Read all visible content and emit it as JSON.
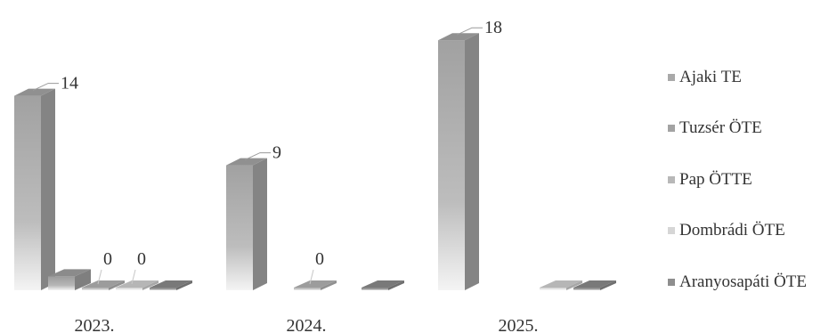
{
  "chart_data": {
    "type": "bar",
    "categories": [
      "2023.",
      "2024.",
      "2025."
    ],
    "series": [
      {
        "name": "Ajaki TE",
        "values": [
          14,
          9,
          18
        ],
        "color": "#a9a9a9"
      },
      {
        "name": "Tuzsér ÖTE",
        "values": [
          1,
          null,
          null
        ],
        "color": "#a3a3a3"
      },
      {
        "name": "Pap ÖTTE",
        "values": [
          0,
          0,
          null
        ],
        "color": "#b8b8b8"
      },
      {
        "name": "Dombrádi ÖTE",
        "values": [
          0,
          null,
          0
        ],
        "color": "#d6d6d6"
      },
      {
        "name": "Aranyosapáti ÖTE",
        "values": [
          0,
          0,
          0
        ],
        "color": "#8e8e8e"
      }
    ],
    "data_labels": [
      {
        "category": "2023.",
        "series": "Ajaki TE",
        "text": "14"
      },
      {
        "category": "2023.",
        "series": "Pap ÖTTE",
        "text": "0"
      },
      {
        "category": "2023.",
        "series": "Dombrádi ÖTE",
        "text": "0"
      },
      {
        "category": "2024.",
        "series": "Ajaki TE",
        "text": "9"
      },
      {
        "category": "2024.",
        "series": "Pap ÖTTE",
        "text": "0"
      },
      {
        "category": "2025.",
        "series": "Ajaki TE",
        "text": "18"
      }
    ],
    "ylim": [
      0,
      20
    ],
    "grid": false,
    "legend": "right",
    "style": "3d-column"
  }
}
